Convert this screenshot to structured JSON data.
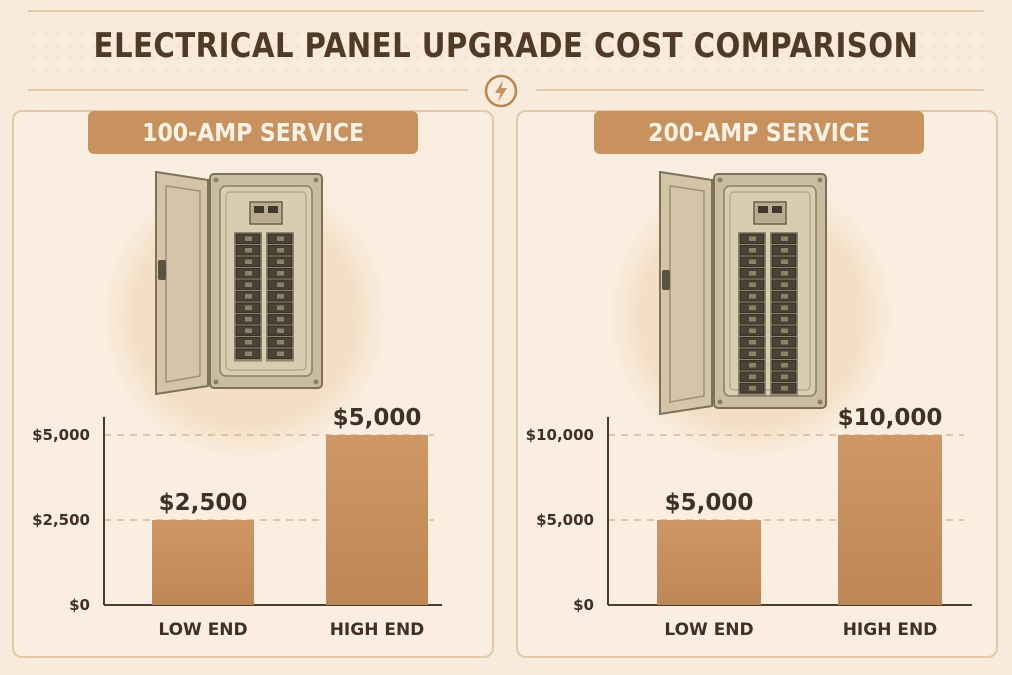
{
  "header": {
    "title": "ELECTRICAL PANEL UPGRADE COST COMPARISON"
  },
  "icons": {
    "header": "lightning-bolt-icon",
    "panel": "breaker-panel-icon"
  },
  "colors": {
    "background": "#f8ebdc",
    "bar": "#c8925f",
    "banner": "#c8925f",
    "text": "#3f3224"
  },
  "chart_data": [
    {
      "type": "bar",
      "title": "100-AMP SERVICE",
      "categories": [
        "LOW END",
        "HIGH END"
      ],
      "values": [
        2500,
        5000
      ],
      "value_labels": [
        "$2,500",
        "$5,000"
      ],
      "yticks": [
        0,
        2500,
        5000
      ],
      "ytick_labels": [
        "$0",
        "$2,500",
        "$5,000"
      ],
      "ylim": [
        0,
        5000
      ],
      "grid": "dashed at ticks"
    },
    {
      "type": "bar",
      "title": "200-AMP SERVICE",
      "categories": [
        "LOW END",
        "HIGH END"
      ],
      "values": [
        5000,
        10000
      ],
      "value_labels": [
        "$5,000",
        "$10,000"
      ],
      "yticks": [
        0,
        5000,
        10000
      ],
      "ytick_labels": [
        "$0",
        "$5,000",
        "$10,000"
      ],
      "ylim": [
        0,
        10000
      ],
      "grid": "dashed at ticks"
    }
  ]
}
